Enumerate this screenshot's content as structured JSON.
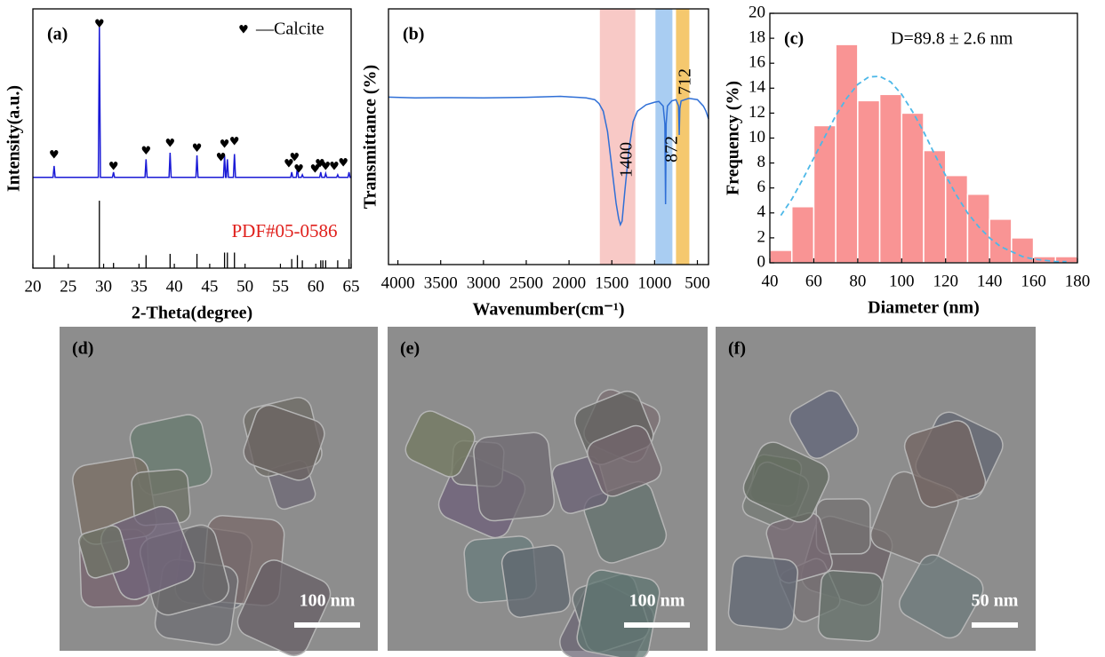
{
  "chart_data": [
    {
      "type": "line",
      "label": "(a)",
      "xlabel": "2-Theta(degree)",
      "ylabel": "Intensity(a.u.)",
      "xlim": [
        20,
        65
      ],
      "xticks": [
        20,
        25,
        30,
        35,
        40,
        45,
        50,
        55,
        60,
        65
      ],
      "ylim": [
        0,
        100
      ],
      "series": [
        {
          "color": "#1a1ad6",
          "x": [
            20,
            22.85,
            23.0,
            23.15,
            29.25,
            29.4,
            29.55,
            31.25,
            31.4,
            31.55,
            35.85,
            36.0,
            36.15,
            39.25,
            39.4,
            39.55,
            43.05,
            43.2,
            43.35,
            46.95,
            47.1,
            47.25,
            47.35,
            47.5,
            47.65,
            48.35,
            48.5,
            48.65,
            56.45,
            56.6,
            56.75,
            57.25,
            57.4,
            57.55,
            57.95,
            58.1,
            58.25,
            60.55,
            60.7,
            60.85,
            61.25,
            61.4,
            61.55,
            62.95,
            63.1,
            63.25,
            64.55,
            64.7,
            64.85,
            65
          ],
          "values": [
            35,
            35,
            39.4,
            35,
            35,
            93,
            35,
            35,
            37,
            35,
            35,
            42,
            35,
            35,
            44.5,
            35,
            35,
            43.5,
            35,
            35,
            43.5,
            35,
            35,
            42,
            35,
            35,
            44,
            35,
            35,
            37,
            35,
            35,
            39,
            35,
            35,
            36,
            35,
            35,
            37,
            35,
            35,
            36.5,
            35,
            35,
            36,
            35,
            35,
            37,
            35,
            35
          ]
        },
        {
          "name": "PDF#05-0586",
          "style": "stick",
          "color": "#000000",
          "label_color": "#e0201c",
          "x": [
            23.0,
            29.4,
            31.4,
            36.0,
            39.4,
            43.2,
            47.1,
            47.5,
            48.5,
            56.6,
            57.4,
            58.1,
            60.7,
            61.0,
            61.4,
            63.1,
            64.7
          ],
          "values": [
            5,
            26,
            2,
            5,
            5.5,
            5.5,
            6,
            6,
            6,
            3.5,
            5,
            3,
            3,
            3,
            3,
            3,
            3.5
          ]
        }
      ],
      "markers": {
        "name": "—Calcite",
        "symbol": "♥",
        "color": "#000000",
        "x": [
          23.0,
          29.4,
          31.4,
          36.0,
          39.4,
          43.2,
          46.6,
          47.1,
          48.5,
          56.2,
          57.0,
          57.6,
          59.9,
          60.6,
          61.4,
          62.6,
          63.9
        ],
        "values": [
          43.5,
          94,
          39,
          45,
          48,
          46,
          42.5,
          47.6,
          48.6,
          40,
          42.5,
          38,
          38,
          40,
          39,
          39,
          40.4
        ]
      }
    },
    {
      "type": "line",
      "label": "(b)",
      "xlabel": "Wavenumber(cm⁻¹)",
      "ylabel": "Transmittance (%)",
      "xlim": [
        4110,
        370
      ],
      "xticks": [
        4000,
        3500,
        3000,
        2500,
        2000,
        1500,
        1000,
        500
      ],
      "ylim": [
        0,
        100
      ],
      "bands": [
        {
          "from": 1640,
          "to": 1225,
          "color": "#f8c9c6"
        },
        {
          "from": 990,
          "to": 792,
          "color": "#a9cdf2"
        },
        {
          "from": 750,
          "to": 594,
          "color": "#f5c86e"
        }
      ],
      "peak_labels": [
        1400,
        872,
        712
      ],
      "series": [
        {
          "color": "#2f6fd6",
          "x": [
            4110,
            3800,
            3500,
            3000,
            2500,
            2100,
            2000,
            1900,
            1800,
            1700,
            1650,
            1600,
            1550,
            1500,
            1450,
            1420,
            1400,
            1380,
            1350,
            1300,
            1250,
            1200,
            1100,
            1000,
            950,
            900,
            880,
            872,
            865,
            850,
            800,
            750,
            720,
            712,
            705,
            690,
            600,
            500,
            430,
            400,
            370
          ],
          "values": [
            65.5,
            65.2,
            65.3,
            65.2,
            65.4,
            65.8,
            65.6,
            65.4,
            65.2,
            64.5,
            63,
            60,
            52,
            38,
            24,
            18,
            15.6,
            17,
            28,
            45,
            56,
            60,
            62.5,
            63.5,
            63.8,
            62,
            55,
            23.6,
            55,
            62,
            64,
            64.5,
            62,
            50.7,
            61,
            64,
            65,
            64.5,
            62,
            60,
            57
          ]
        }
      ]
    },
    {
      "type": "histogram",
      "label": "(c)",
      "xlabel": "Diameter (nm)",
      "ylabel": "Frequency (%)",
      "annotation": "D=89.8 ± 2.6 nm",
      "xlim": [
        40,
        180
      ],
      "xticks": [
        40,
        60,
        80,
        100,
        120,
        140,
        160,
        180
      ],
      "ylim": [
        0,
        20
      ],
      "yticks": [
        0,
        2,
        4,
        6,
        8,
        10,
        12,
        14,
        16,
        18,
        20
      ],
      "bins": [
        40,
        50,
        60,
        70,
        80,
        90,
        100,
        110,
        120,
        130,
        140,
        150,
        160,
        170,
        180
      ],
      "values": [
        1,
        4.5,
        11,
        17.5,
        13,
        13.5,
        12,
        9,
        7,
        5.5,
        3.5,
        2,
        0.5,
        0.5
      ],
      "color": "#f99494",
      "fit": {
        "color": "#4db8e8",
        "x": [
          45,
          50,
          55,
          60,
          65,
          70,
          75,
          80,
          85,
          90,
          95,
          100,
          105,
          110,
          115,
          120,
          125,
          130,
          135,
          140,
          145,
          150,
          155,
          160,
          165,
          170,
          175
        ],
        "values": [
          3.8,
          5.1,
          6.7,
          8.4,
          10.1,
          11.8,
          13.2,
          14.3,
          14.9,
          14.95,
          14.5,
          13.5,
          12.1,
          10.5,
          8.7,
          7.0,
          5.4,
          4.0,
          2.9,
          2.0,
          1.3,
          0.9,
          0.5,
          0.3,
          0.2,
          0.1,
          0.1
        ]
      }
    }
  ],
  "images": [
    {
      "label": "(d)",
      "scale_bar": "100 nm"
    },
    {
      "label": "(e)",
      "scale_bar": "100 nm"
    },
    {
      "label": "(f)",
      "scale_bar": "50 nm"
    }
  ]
}
